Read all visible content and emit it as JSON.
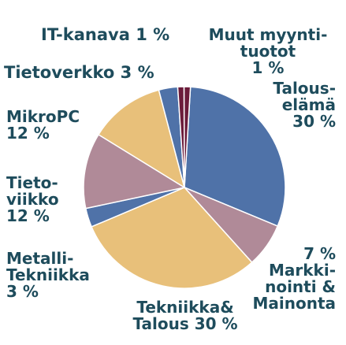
{
  "chart_data": {
    "type": "pie",
    "categories": [
      "Talous-elämä",
      "Markki-nointi & Mainonta",
      "Tekniikka& Talous",
      "Metalli-Tekniikka",
      "Tieto-viikko",
      "MikroPC",
      "Tietoverkko",
      "IT-kanava",
      "Muut myynti-tuotot"
    ],
    "values": [
      30,
      7,
      30,
      3,
      12,
      12,
      3,
      1,
      1
    ],
    "value_labels": [
      "30 %",
      "7 %",
      "30 %",
      "3 %",
      "12 %",
      "12 %",
      "3 %",
      "1 %",
      "1 %"
    ],
    "colors": [
      "#4f72a8",
      "#b08a98",
      "#e8c07a",
      "#4f72a8",
      "#b08a98",
      "#e8c07a",
      "#4f72a8",
      "#6b1b3a",
      "#6b1b3a"
    ]
  }
}
